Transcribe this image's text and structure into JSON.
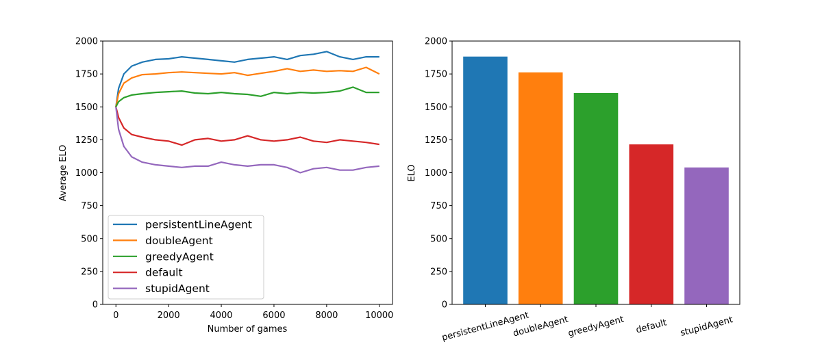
{
  "chart_data": [
    {
      "type": "line",
      "xlabel": "Number of games",
      "ylabel": "Average ELO",
      "xlim": [
        -500,
        10500
      ],
      "ylim": [
        0,
        2000
      ],
      "xticks": [
        0,
        2000,
        4000,
        6000,
        8000,
        10000
      ],
      "xtick_labels": [
        "0",
        "2000",
        "4000",
        "6000",
        "8000",
        "10000"
      ],
      "yticks": [
        0,
        250,
        500,
        750,
        1000,
        1250,
        1500,
        1750,
        2000
      ],
      "ytick_labels": [
        "0",
        "250",
        "500",
        "750",
        "1000",
        "1250",
        "1500",
        "1750",
        "2000"
      ],
      "legend_position": "lower-left",
      "grid": false,
      "series": [
        {
          "name": "persistentLineAgent",
          "color": "#1f77b4",
          "x": [
            0,
            100,
            300,
            600,
            1000,
            1500,
            2000,
            2500,
            3000,
            3500,
            4000,
            4500,
            5000,
            5500,
            6000,
            6500,
            7000,
            7500,
            8000,
            8500,
            9000,
            9500,
            10000
          ],
          "values": [
            1500,
            1640,
            1750,
            1810,
            1840,
            1860,
            1865,
            1880,
            1870,
            1860,
            1850,
            1840,
            1860,
            1870,
            1880,
            1860,
            1890,
            1900,
            1920,
            1880,
            1860,
            1880,
            1880
          ]
        },
        {
          "name": "doubleAgent",
          "color": "#ff7f0e",
          "x": [
            0,
            100,
            300,
            600,
            1000,
            1500,
            2000,
            2500,
            3000,
            3500,
            4000,
            4500,
            5000,
            5500,
            6000,
            6500,
            7000,
            7500,
            8000,
            8500,
            9000,
            9500,
            10000
          ],
          "values": [
            1500,
            1600,
            1680,
            1720,
            1745,
            1750,
            1760,
            1765,
            1760,
            1755,
            1750,
            1760,
            1740,
            1755,
            1770,
            1790,
            1770,
            1780,
            1770,
            1775,
            1770,
            1800,
            1750
          ]
        },
        {
          "name": "greedyAgent",
          "color": "#2ca02c",
          "x": [
            0,
            100,
            300,
            600,
            1000,
            1500,
            2000,
            2500,
            3000,
            3500,
            4000,
            4500,
            5000,
            5500,
            6000,
            6500,
            7000,
            7500,
            8000,
            8500,
            9000,
            9500,
            10000
          ],
          "values": [
            1500,
            1540,
            1570,
            1590,
            1600,
            1610,
            1615,
            1620,
            1605,
            1600,
            1610,
            1600,
            1595,
            1580,
            1610,
            1600,
            1610,
            1605,
            1610,
            1620,
            1650,
            1610,
            1610
          ]
        },
        {
          "name": "default",
          "color": "#d62728",
          "x": [
            0,
            100,
            300,
            600,
            1000,
            1500,
            2000,
            2500,
            3000,
            3500,
            4000,
            4500,
            5000,
            5500,
            6000,
            6500,
            7000,
            7500,
            8000,
            8500,
            9000,
            9500,
            10000
          ],
          "values": [
            1500,
            1420,
            1340,
            1290,
            1270,
            1250,
            1240,
            1210,
            1250,
            1260,
            1240,
            1250,
            1280,
            1250,
            1240,
            1250,
            1270,
            1240,
            1230,
            1250,
            1240,
            1230,
            1215
          ]
        },
        {
          "name": "stupidAgent",
          "color": "#9467bd",
          "x": [
            0,
            100,
            300,
            600,
            1000,
            1500,
            2000,
            2500,
            3000,
            3500,
            4000,
            4500,
            5000,
            5500,
            6000,
            6500,
            7000,
            7500,
            8000,
            8500,
            9000,
            9500,
            10000
          ],
          "values": [
            1500,
            1330,
            1200,
            1120,
            1080,
            1060,
            1050,
            1040,
            1050,
            1050,
            1080,
            1060,
            1050,
            1060,
            1060,
            1040,
            1000,
            1030,
            1040,
            1020,
            1020,
            1040,
            1050
          ]
        }
      ]
    },
    {
      "type": "bar",
      "xlabel": "",
      "ylabel": "ELO",
      "ylim": [
        0,
        2000
      ],
      "yticks": [
        0,
        250,
        500,
        750,
        1000,
        1250,
        1500,
        1750,
        2000
      ],
      "ytick_labels": [
        "0",
        "250",
        "500",
        "750",
        "1000",
        "1250",
        "1500",
        "1750",
        "2000"
      ],
      "xtick_rotation_deg": 15,
      "grid": false,
      "categories": [
        "persistentLineAgent",
        "doubleAgent",
        "greedyAgent",
        "default",
        "stupidAgent"
      ],
      "values": [
        1882,
        1762,
        1605,
        1215,
        1040
      ],
      "colors": [
        "#1f77b4",
        "#ff7f0e",
        "#2ca02c",
        "#d62728",
        "#9467bd"
      ]
    }
  ]
}
